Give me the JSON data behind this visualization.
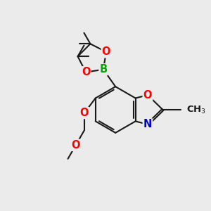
{
  "background_color": "#ebebeb",
  "bond_color": "#1a1a1a",
  "bond_width": 1.5,
  "atom_colors": {
    "O": "#ff0000",
    "N": "#0000cd",
    "B": "#00aa00",
    "C": "#1a1a1a"
  },
  "font_size_atom": 10.5,
  "xlim": [
    0,
    10
  ],
  "ylim": [
    0,
    10
  ]
}
